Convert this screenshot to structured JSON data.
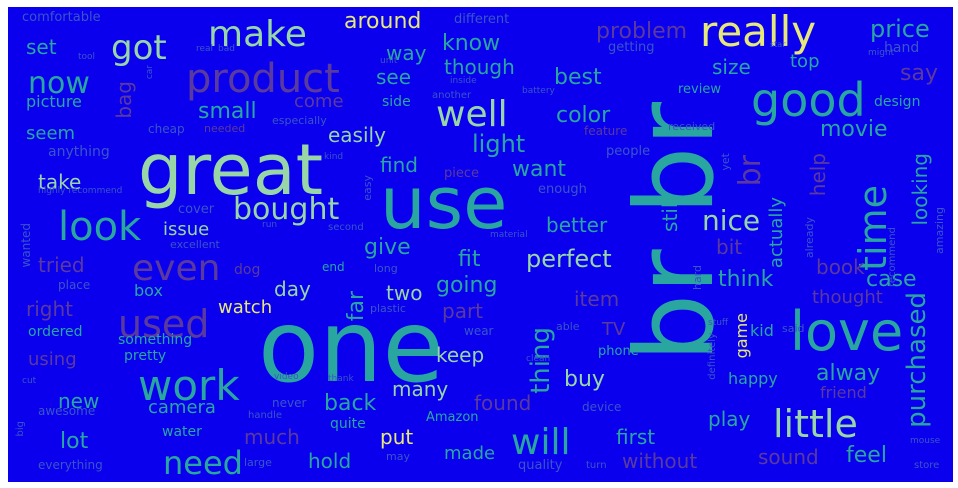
{
  "palette": {
    "background": "#0a00ee",
    "green": "#5fbf8a",
    "light_green": "#98d6a8",
    "teal": "#2aa6a0",
    "yellow": "#e6e87a",
    "maroon": "#5a3a9e",
    "muted": "#3a55c8"
  },
  "words": [
    {
      "text": "br br",
      "color": "teal"
    },
    {
      "text": "one",
      "color": "teal"
    },
    {
      "text": "use",
      "color": "teal"
    },
    {
      "text": "great",
      "color": "light_green"
    },
    {
      "text": "love",
      "color": "teal"
    },
    {
      "text": "product",
      "color": "maroon"
    },
    {
      "text": "really",
      "color": "yellow"
    },
    {
      "text": "good",
      "color": "teal"
    },
    {
      "text": "make",
      "color": "light_green"
    },
    {
      "text": "work",
      "color": "teal"
    },
    {
      "text": "little",
      "color": "light_green"
    },
    {
      "text": "got",
      "color": "light_green"
    },
    {
      "text": "look",
      "color": "teal"
    },
    {
      "text": "time",
      "color": "teal"
    },
    {
      "text": "even",
      "color": "maroon"
    },
    {
      "text": "used",
      "color": "maroon"
    },
    {
      "text": "well",
      "color": "light_green"
    },
    {
      "text": "will",
      "color": "teal"
    },
    {
      "text": "need",
      "color": "teal"
    },
    {
      "text": "bought",
      "color": "light_green"
    },
    {
      "text": "now",
      "color": "teal"
    },
    {
      "text": "purchased",
      "color": "teal"
    },
    {
      "text": "br",
      "color": "maroon"
    },
    {
      "text": "price",
      "color": "teal"
    },
    {
      "text": "perfect",
      "color": "light_green"
    },
    {
      "text": "nice",
      "color": "light_green"
    },
    {
      "text": "thing",
      "color": "teal"
    },
    {
      "text": "around",
      "color": "yellow"
    },
    {
      "text": "know",
      "color": "teal"
    },
    {
      "text": "problem",
      "color": "maroon"
    },
    {
      "text": "say",
      "color": "maroon"
    },
    {
      "text": "best",
      "color": "teal"
    },
    {
      "text": "size",
      "color": "teal"
    },
    {
      "text": "top",
      "color": "teal"
    },
    {
      "text": "small",
      "color": "teal"
    },
    {
      "text": "see",
      "color": "teal"
    },
    {
      "text": "color",
      "color": "teal"
    },
    {
      "text": "movie",
      "color": "teal"
    },
    {
      "text": "way",
      "color": "teal"
    },
    {
      "text": "though",
      "color": "teal"
    },
    {
      "text": "set",
      "color": "teal"
    },
    {
      "text": "bag",
      "color": "maroon"
    },
    {
      "text": "picture",
      "color": "teal"
    },
    {
      "text": "come",
      "color": "maroon"
    },
    {
      "text": "easily",
      "color": "light_green"
    },
    {
      "text": "light",
      "color": "teal"
    },
    {
      "text": "find",
      "color": "teal"
    },
    {
      "text": "want",
      "color": "teal"
    },
    {
      "text": "seem",
      "color": "teal"
    },
    {
      "text": "take",
      "color": "light_green"
    },
    {
      "text": "better",
      "color": "teal"
    },
    {
      "text": "still",
      "color": "teal"
    },
    {
      "text": "help",
      "color": "maroon"
    },
    {
      "text": "actually",
      "color": "teal"
    },
    {
      "text": "looking",
      "color": "teal"
    },
    {
      "text": "issue",
      "color": "light_green"
    },
    {
      "text": "give",
      "color": "teal"
    },
    {
      "text": "tried",
      "color": "maroon"
    },
    {
      "text": "fit",
      "color": "teal"
    },
    {
      "text": "going",
      "color": "teal"
    },
    {
      "text": "bit",
      "color": "maroon"
    },
    {
      "text": "think",
      "color": "teal"
    },
    {
      "text": "book",
      "color": "maroon"
    },
    {
      "text": "case",
      "color": "teal"
    },
    {
      "text": "day",
      "color": "light_green"
    },
    {
      "text": "watch",
      "color": "yellow"
    },
    {
      "text": "far",
      "color": "teal"
    },
    {
      "text": "two",
      "color": "light_green"
    },
    {
      "text": "part",
      "color": "maroon"
    },
    {
      "text": "item",
      "color": "maroon"
    },
    {
      "text": "thought",
      "color": "maroon"
    },
    {
      "text": "right",
      "color": "maroon"
    },
    {
      "text": "box",
      "color": "teal"
    },
    {
      "text": "keep",
      "color": "light_green"
    },
    {
      "text": "TV",
      "color": "maroon"
    },
    {
      "text": "game",
      "color": "yellow"
    },
    {
      "text": "kid",
      "color": "teal"
    },
    {
      "text": "buy",
      "color": "light_green"
    },
    {
      "text": "alway",
      "color": "teal"
    },
    {
      "text": "happy",
      "color": "teal"
    },
    {
      "text": "friend",
      "color": "maroon"
    },
    {
      "text": "many",
      "color": "light_green"
    },
    {
      "text": "camera",
      "color": "teal"
    },
    {
      "text": "back",
      "color": "teal"
    },
    {
      "text": "found",
      "color": "maroon"
    },
    {
      "text": "new",
      "color": "teal"
    },
    {
      "text": "using",
      "color": "maroon"
    },
    {
      "text": "pretty",
      "color": "teal"
    },
    {
      "text": "something",
      "color": "teal"
    },
    {
      "text": "ordered",
      "color": "teal"
    },
    {
      "text": "lot",
      "color": "teal"
    },
    {
      "text": "much",
      "color": "maroon"
    },
    {
      "text": "put",
      "color": "yellow"
    },
    {
      "text": "first",
      "color": "teal"
    },
    {
      "text": "play",
      "color": "teal"
    },
    {
      "text": "feel",
      "color": "teal"
    },
    {
      "text": "sound",
      "color": "maroon"
    },
    {
      "text": "made",
      "color": "teal"
    },
    {
      "text": "hold",
      "color": "teal"
    },
    {
      "text": "without",
      "color": "maroon"
    },
    {
      "text": "water",
      "color": "teal"
    },
    {
      "text": "quite",
      "color": "teal"
    },
    {
      "text": "Amazon",
      "color": "teal"
    },
    {
      "text": "comfortable",
      "color": "muted"
    },
    {
      "text": "different",
      "color": "muted"
    },
    {
      "text": "getting",
      "color": "muted"
    },
    {
      "text": "hand",
      "color": "muted"
    },
    {
      "text": "design",
      "color": "teal"
    },
    {
      "text": "review",
      "color": "teal"
    },
    {
      "text": "cheap",
      "color": "muted"
    },
    {
      "text": "anything",
      "color": "muted"
    },
    {
      "text": "enough",
      "color": "muted"
    },
    {
      "text": "people",
      "color": "muted"
    },
    {
      "text": "excellent",
      "color": "muted"
    },
    {
      "text": "recommend",
      "color": "muted"
    },
    {
      "text": "amazing",
      "color": "muted"
    },
    {
      "text": "wanted",
      "color": "muted"
    },
    {
      "text": "place",
      "color": "muted"
    },
    {
      "text": "dog",
      "color": "maroon"
    },
    {
      "text": "end",
      "color": "teal"
    },
    {
      "text": "long",
      "color": "muted"
    },
    {
      "text": "awesome",
      "color": "muted"
    },
    {
      "text": "everything",
      "color": "muted"
    },
    {
      "text": "large",
      "color": "muted"
    },
    {
      "text": "may",
      "color": "muted"
    },
    {
      "text": "quality",
      "color": "muted"
    },
    {
      "text": "turn",
      "color": "muted"
    },
    {
      "text": "store",
      "color": "muted"
    },
    {
      "text": "phone",
      "color": "teal"
    },
    {
      "text": "wear",
      "color": "muted"
    },
    {
      "text": "able",
      "color": "muted"
    },
    {
      "text": "plastic",
      "color": "muted"
    },
    {
      "text": "device",
      "color": "muted"
    },
    {
      "text": "never",
      "color": "muted"
    },
    {
      "text": "handle",
      "color": "muted"
    },
    {
      "text": "cover",
      "color": "muted"
    },
    {
      "text": "easy",
      "color": "muted"
    },
    {
      "text": "piece",
      "color": "maroon"
    },
    {
      "text": "side",
      "color": "teal"
    },
    {
      "text": "feature",
      "color": "maroon"
    },
    {
      "text": "received",
      "color": "muted"
    },
    {
      "text": "another",
      "color": "muted"
    },
    {
      "text": "inside",
      "color": "muted"
    },
    {
      "text": "battery",
      "color": "muted"
    },
    {
      "text": "especially",
      "color": "muted"
    },
    {
      "text": "needed",
      "color": "maroon"
    },
    {
      "text": "already",
      "color": "muted"
    },
    {
      "text": "yet",
      "color": "muted"
    },
    {
      "text": "said",
      "color": "muted"
    },
    {
      "text": "stuff",
      "color": "muted"
    },
    {
      "text": "hard",
      "color": "muted"
    },
    {
      "text": "definitely",
      "color": "muted"
    },
    {
      "text": "clean",
      "color": "muted"
    },
    {
      "text": "material",
      "color": "muted"
    },
    {
      "text": "second",
      "color": "muted"
    },
    {
      "text": "kind",
      "color": "muted"
    },
    {
      "text": "highly recommend",
      "color": "muted"
    },
    {
      "text": "cut",
      "color": "muted"
    },
    {
      "text": "video",
      "color": "muted"
    },
    {
      "text": "big",
      "color": "muted"
    },
    {
      "text": "run",
      "color": "muted"
    },
    {
      "text": "thank",
      "color": "muted"
    },
    {
      "text": "might",
      "color": "muted"
    },
    {
      "text": "unit",
      "color": "muted"
    },
    {
      "text": "real",
      "color": "muted"
    },
    {
      "text": "bad",
      "color": "muted"
    },
    {
      "text": "tool",
      "color": "muted"
    },
    {
      "text": "car",
      "color": "muted"
    },
    {
      "text": "star",
      "color": "muted"
    },
    {
      "text": "mouse",
      "color": "muted"
    }
  ]
}
